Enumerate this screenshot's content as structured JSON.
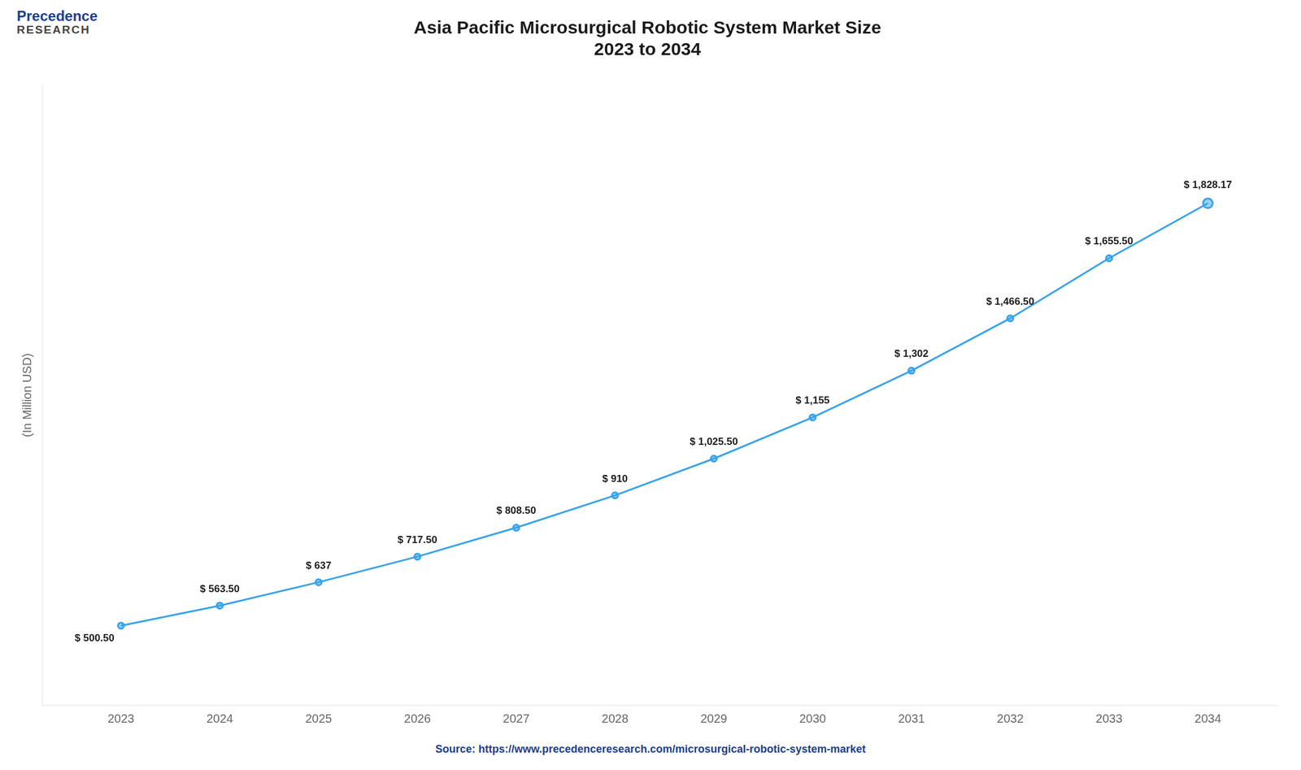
{
  "chart_data": {
    "type": "line",
    "title": "Asia Pacific Microsurgical Robotic System Market Size\n2023 to 2034",
    "ylabel": "(In Million USD)",
    "annotations": [
      "Precedence",
      "RESEARCH",
      "Source: https://www.precedenceresearch.com/microsurgical-robotic-system-market"
    ],
    "x": [
      2023,
      2024,
      2025,
      2026,
      2027,
      2028,
      2029,
      2030,
      2031,
      2032,
      2033,
      2034
    ],
    "values": [
      500.5,
      563.5,
      637.0,
      717.5,
      808.5,
      910.0,
      1025.5,
      1155.0,
      1302.0,
      1466.5,
      1655.5,
      1828.17
    ],
    "value_labels": [
      "$ 500.50",
      "$ 563.50",
      "$ 637",
      "$ 717.50",
      "$ 808.50",
      "$ 910",
      "$ 1,025.50",
      "$ 1,155",
      "$ 1,302",
      "$ 1,466.50",
      "$ 1,655.50",
      "$ 1,828.17"
    ],
    "data_labels": true,
    "marker": "circle",
    "xlim": [
      2022.2,
      2034.7
    ],
    "xticks": [
      2023,
      2024,
      2025,
      2026,
      2027,
      2028,
      2029,
      2030,
      2031,
      2032,
      2033,
      2034
    ],
    "ylim": [
      250,
      2200
    ],
    "tick_labels": "x",
    "grid": false
  }
}
